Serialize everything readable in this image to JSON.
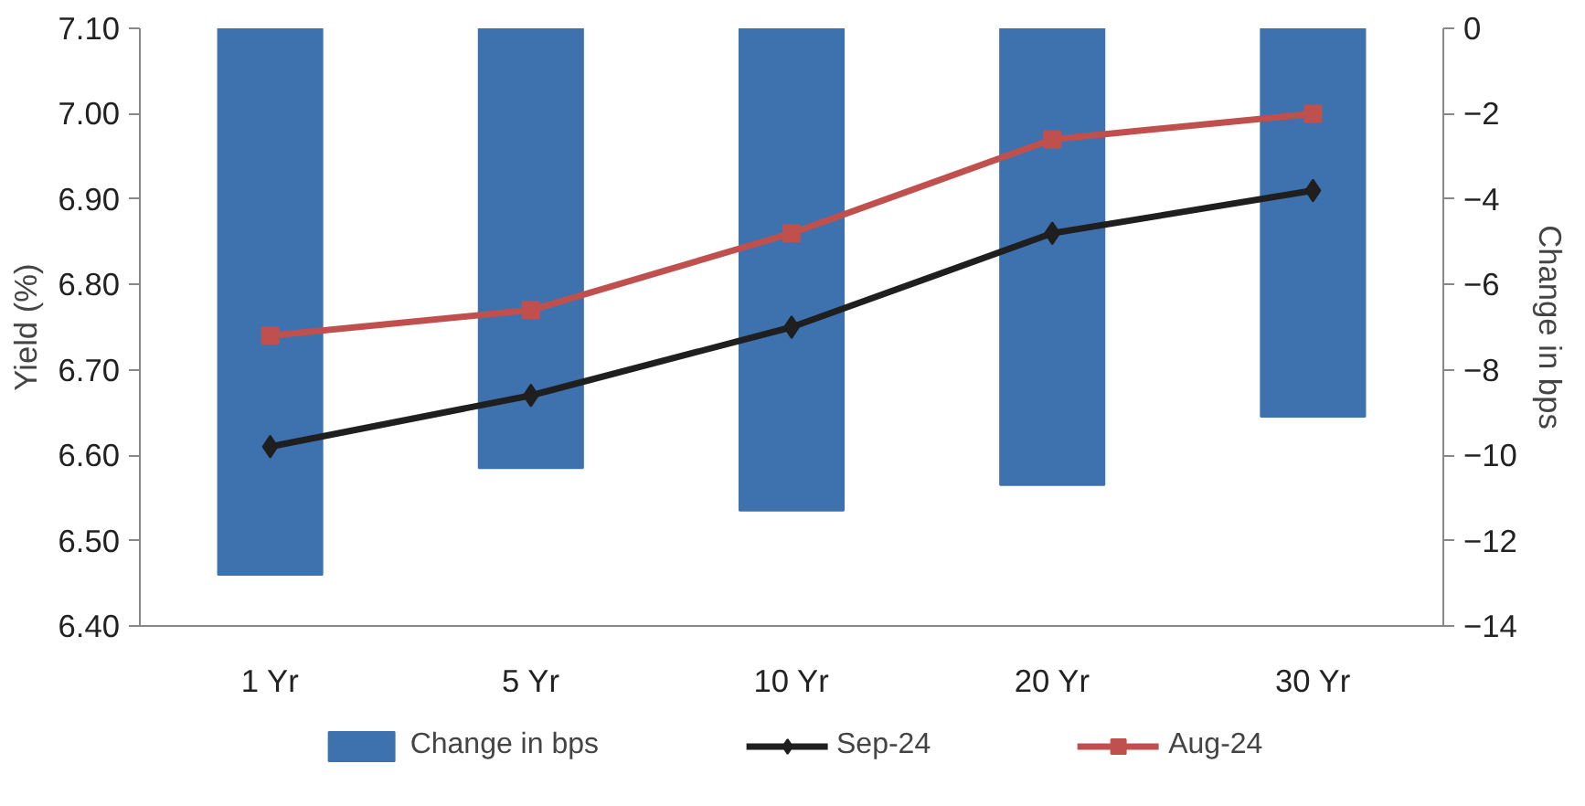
{
  "chart_data": {
    "type": "line",
    "ylabel": "Yield (%)",
    "y2label": "Change in bps",
    "categories": [
      "1 Yr",
      "5 Yr",
      "10 Yr",
      "20 Yr",
      "30 Yr"
    ],
    "series": [
      {
        "name": "Change in bps",
        "type": "bar",
        "axis": "y2",
        "color": "#3d72ae",
        "values": [
          -12.8,
          -10.3,
          -11.3,
          -10.7,
          -9.1
        ]
      },
      {
        "name": "Sep-24",
        "marker": "diamond",
        "color": "#1f1f1f",
        "values": [
          6.61,
          6.67,
          6.75,
          6.86,
          6.91
        ]
      },
      {
        "name": "Aug-24",
        "marker": "square",
        "color": "#c0504d",
        "values": [
          6.74,
          6.77,
          6.86,
          6.97,
          7.0
        ]
      }
    ],
    "ylim": [
      6.4,
      7.1
    ],
    "yticks": [
      {
        "value": 6.4,
        "label": "6.40"
      },
      {
        "value": 6.5,
        "label": "6.50"
      },
      {
        "value": 6.6,
        "label": "6.60"
      },
      {
        "value": 6.7,
        "label": "6.70"
      },
      {
        "value": 6.8,
        "label": "6.80"
      },
      {
        "value": 6.9,
        "label": "6.90"
      },
      {
        "value": 7.0,
        "label": "7.00"
      },
      {
        "value": 7.1,
        "label": "7.10"
      }
    ],
    "y2lim": [
      -14,
      0
    ],
    "y2ticks": [
      -14,
      -12,
      -10,
      -8,
      -6,
      -4,
      -2,
      0
    ],
    "grid": false,
    "legend": "bottom"
  }
}
